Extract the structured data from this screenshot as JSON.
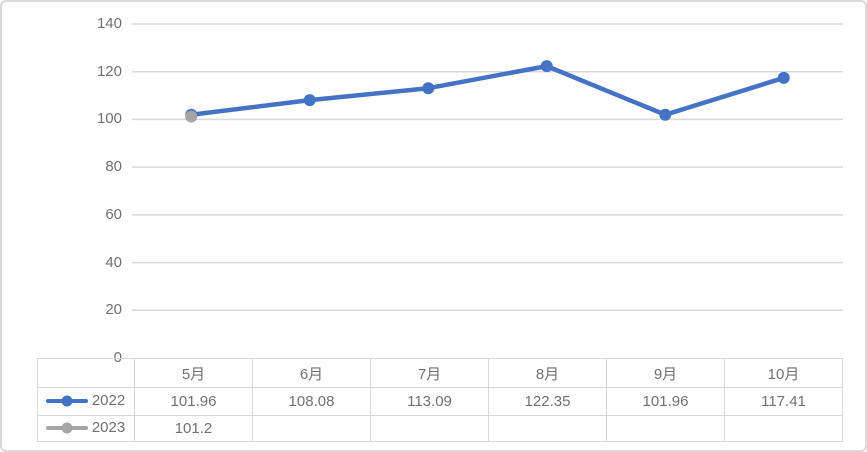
{
  "chart_data": {
    "type": "line",
    "title": "",
    "xlabel": "",
    "ylabel": "",
    "categories": [
      "5月",
      "6月",
      "7月",
      "8月",
      "9月",
      "10月"
    ],
    "series": [
      {
        "name": "2022",
        "color": "#4472C4",
        "values": [
          101.96,
          108.08,
          113.09,
          122.35,
          101.96,
          117.41
        ]
      },
      {
        "name": "2023",
        "color": "#A5A5A5",
        "values": [
          101.2,
          null,
          null,
          null,
          null,
          null
        ]
      }
    ],
    "ylim": [
      0,
      140
    ],
    "yticks": [
      140,
      120,
      100,
      80,
      60,
      40,
      20,
      0
    ],
    "grid": true,
    "gridline_color": "#D9D9D9",
    "axis_text_color": "#707070",
    "legend_position": "table-left",
    "marker": "circle",
    "line_width": 4.5,
    "marker_radius": 6
  }
}
